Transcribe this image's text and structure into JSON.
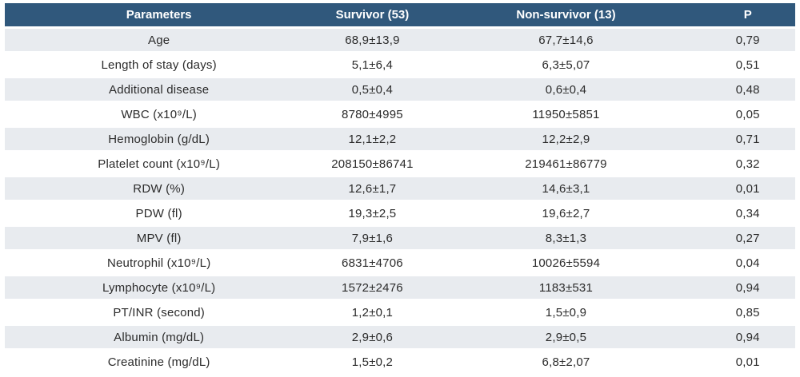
{
  "theme": {
    "header_bg": "#30587c",
    "header_text": "#ffffff",
    "stripe_bg": "#e8ebef",
    "body_text": "#2b2b2b",
    "page_bg": "#ffffff"
  },
  "table": {
    "columns": [
      {
        "key": "param",
        "label": "Parameters"
      },
      {
        "key": "survivor",
        "label": "Survivor (53)"
      },
      {
        "key": "nonsurvivor",
        "label": "Non-survivor (13)"
      },
      {
        "key": "p",
        "label": "P"
      }
    ],
    "rows": [
      {
        "param": "Age",
        "survivor": "68,9±13,9",
        "nonsurvivor": "67,7±14,6",
        "p": "0,79"
      },
      {
        "param": "Length of stay (days)",
        "survivor": "5,1±6,4",
        "nonsurvivor": "6,3±5,07",
        "p": "0,51"
      },
      {
        "param": "Additional disease",
        "survivor": "0,5±0,4",
        "nonsurvivor": "0,6±0,4",
        "p": "0,48"
      },
      {
        "param": "WBC (x10⁹/L)",
        "survivor": "8780±4995",
        "nonsurvivor": "11950±5851",
        "p": "0,05"
      },
      {
        "param": "Hemoglobin (g/dL)",
        "survivor": "12,1±2,2",
        "nonsurvivor": "12,2±2,9",
        "p": "0,71"
      },
      {
        "param": "Platelet count (x10⁹/L)",
        "survivor": "208150±86741",
        "nonsurvivor": "219461±86779",
        "p": "0,32"
      },
      {
        "param": "RDW (%)",
        "survivor": "12,6±1,7",
        "nonsurvivor": "14,6±3,1",
        "p": "0,01"
      },
      {
        "param": "PDW (fl)",
        "survivor": "19,3±2,5",
        "nonsurvivor": "19,6±2,7",
        "p": "0,34"
      },
      {
        "param": "MPV (fl)",
        "survivor": "7,9±1,6",
        "nonsurvivor": "8,3±1,3",
        "p": "0,27"
      },
      {
        "param": "Neutrophil (x10⁹/L)",
        "survivor": "6831±4706",
        "nonsurvivor": "10026±5594",
        "p": "0,04"
      },
      {
        "param": "Lymphocyte (x10⁹/L)",
        "survivor": "1572±2476",
        "nonsurvivor": "1183±531",
        "p": "0,94"
      },
      {
        "param": "PT/INR (second)",
        "survivor": "1,2±0,1",
        "nonsurvivor": "1,5±0,9",
        "p": "0,85"
      },
      {
        "param": "Albumin (mg/dL)",
        "survivor": "2,9±0,6",
        "nonsurvivor": "2,9±0,5",
        "p": "0,94"
      },
      {
        "param": "Creatinine (mg/dL)",
        "survivor": "1,5±0,2",
        "nonsurvivor": "6,8±2,07",
        "p": "0,01"
      }
    ]
  },
  "chart_data": {
    "type": "table",
    "title": "",
    "columns": [
      "Parameters",
      "Survivor (53)",
      "Non-survivor (13)",
      "P"
    ],
    "rows": [
      [
        "Age",
        "68,9±13,9",
        "67,7±14,6",
        "0,79"
      ],
      [
        "Length of stay (days)",
        "5,1±6,4",
        "6,3±5,07",
        "0,51"
      ],
      [
        "Additional disease",
        "0,5±0,4",
        "0,6±0,4",
        "0,48"
      ],
      [
        "WBC (x10⁹/L)",
        "8780±4995",
        "11950±5851",
        "0,05"
      ],
      [
        "Hemoglobin (g/dL)",
        "12,1±2,2",
        "12,2±2,9",
        "0,71"
      ],
      [
        "Platelet count (x10⁹/L)",
        "208150±86741",
        "219461±86779",
        "0,32"
      ],
      [
        "RDW (%)",
        "12,6±1,7",
        "14,6±3,1",
        "0,01"
      ],
      [
        "PDW (fl)",
        "19,3±2,5",
        "19,6±2,7",
        "0,34"
      ],
      [
        "MPV (fl)",
        "7,9±1,6",
        "8,3±1,3",
        "0,27"
      ],
      [
        "Neutrophil (x10⁹/L)",
        "6831±4706",
        "10026±5594",
        "0,04"
      ],
      [
        "Lymphocyte (x10⁹/L)",
        "1572±2476",
        "1183±531",
        "0,94"
      ],
      [
        "PT/INR (second)",
        "1,2±0,1",
        "1,5±0,9",
        "0,85"
      ],
      [
        "Albumin (mg/dL)",
        "2,9±0,6",
        "2,9±0,5",
        "0,94"
      ],
      [
        "Creatinine (mg/dL)",
        "1,5±0,2",
        "6,8±2,07",
        "0,01"
      ]
    ]
  }
}
